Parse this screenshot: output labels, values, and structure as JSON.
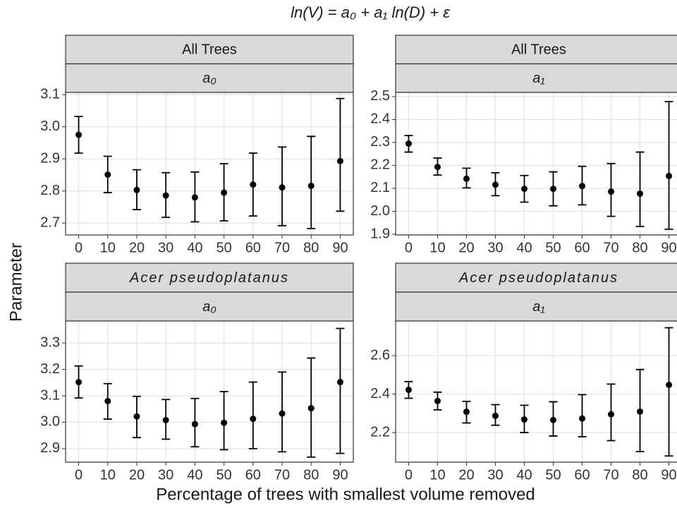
{
  "figure": {
    "title": "ln(V) = a₀ + a₁ ln(D) + ε",
    "x_label": "Percentage of trees with smallest volume removed",
    "y_label": "Parameter"
  },
  "chart_data": [
    {
      "type": "errorbar",
      "facet": "All Trees",
      "parameter": "a₀",
      "color": "#000000",
      "grid": true,
      "x": [
        0,
        10,
        20,
        30,
        40,
        50,
        60,
        70,
        80,
        90
      ],
      "values": [
        2.975,
        2.851,
        2.803,
        2.786,
        2.78,
        2.795,
        2.82,
        2.811,
        2.816,
        2.893
      ],
      "lower": [
        2.918,
        2.795,
        2.742,
        2.718,
        2.704,
        2.707,
        2.722,
        2.692,
        2.683,
        2.737
      ],
      "upper": [
        3.032,
        2.908,
        2.866,
        2.857,
        2.859,
        2.885,
        2.918,
        2.937,
        2.97,
        3.088
      ],
      "xlim": [
        -4.5,
        94.5
      ],
      "xticks": [
        0,
        10,
        20,
        30,
        40,
        50,
        60,
        70,
        80,
        90
      ],
      "ylim": [
        2.663,
        3.107
      ],
      "yticks": [
        2.7,
        2.8,
        2.9,
        {
          "value": 3.0,
          "label": "3.0"
        },
        3.1
      ]
    },
    {
      "type": "errorbar",
      "facet": "All Trees",
      "parameter": "a₁",
      "color": "#000000",
      "grid": true,
      "x": [
        0,
        10,
        20,
        30,
        40,
        50,
        60,
        70,
        80,
        90
      ],
      "values": [
        2.295,
        2.193,
        2.142,
        2.116,
        2.098,
        2.098,
        2.11,
        2.086,
        2.077,
        2.154
      ],
      "lower": [
        2.258,
        2.158,
        2.102,
        2.068,
        2.04,
        2.024,
        2.028,
        1.978,
        1.934,
        1.922
      ],
      "upper": [
        2.33,
        2.232,
        2.188,
        2.168,
        2.156,
        2.172,
        2.196,
        2.208,
        2.258,
        2.478
      ],
      "xlim": [
        -4.5,
        94.5
      ],
      "xticks": [
        0,
        10,
        20,
        30,
        40,
        50,
        60,
        70,
        80,
        90
      ],
      "ylim": [
        1.897,
        2.518
      ],
      "yticks": [
        1.9,
        {
          "value": 2.0,
          "label": "2.0"
        },
        2.1,
        2.2,
        2.3,
        2.4,
        2.5
      ]
    },
    {
      "type": "errorbar",
      "facet": "Acer pseudoplatanus",
      "parameter": "a₀",
      "color": "#000000",
      "grid": true,
      "x": [
        0,
        10,
        20,
        30,
        40,
        50,
        60,
        70,
        80,
        90
      ],
      "values": [
        3.152,
        3.08,
        3.022,
        3.008,
        2.993,
        2.998,
        3.013,
        3.033,
        3.053,
        3.152
      ],
      "lower": [
        3.092,
        3.012,
        2.942,
        2.936,
        2.907,
        2.896,
        2.9,
        2.888,
        2.868,
        2.882
      ],
      "upper": [
        3.213,
        3.146,
        3.098,
        3.086,
        3.09,
        3.116,
        3.152,
        3.19,
        3.243,
        3.355
      ],
      "xlim": [
        -4.5,
        94.5
      ],
      "xticks": [
        0,
        10,
        20,
        30,
        40,
        50,
        60,
        70,
        80,
        90
      ],
      "ylim": [
        2.849,
        3.383
      ],
      "yticks": [
        2.9,
        {
          "value": 3.0,
          "label": "3.0"
        },
        3.1,
        3.2,
        3.3
      ]
    },
    {
      "type": "errorbar",
      "facet": "Acer pseudoplatanus",
      "parameter": "a₁",
      "color": "#000000",
      "grid": true,
      "x": [
        0,
        10,
        20,
        30,
        40,
        50,
        60,
        70,
        80,
        90
      ],
      "values": [
        2.422,
        2.364,
        2.308,
        2.287,
        2.268,
        2.265,
        2.273,
        2.295,
        2.309,
        2.448
      ],
      "lower": [
        2.378,
        2.318,
        2.25,
        2.238,
        2.2,
        2.182,
        2.178,
        2.158,
        2.101,
        2.078
      ],
      "upper": [
        2.465,
        2.41,
        2.362,
        2.345,
        2.342,
        2.36,
        2.397,
        2.452,
        2.528,
        2.745
      ],
      "xlim": [
        -4.5,
        94.5
      ],
      "xticks": [
        0,
        10,
        20,
        30,
        40,
        50,
        60,
        70,
        80,
        90
      ],
      "ylim": [
        2.046,
        2.78
      ],
      "yticks": [
        2.2,
        2.4,
        2.6
      ]
    }
  ]
}
